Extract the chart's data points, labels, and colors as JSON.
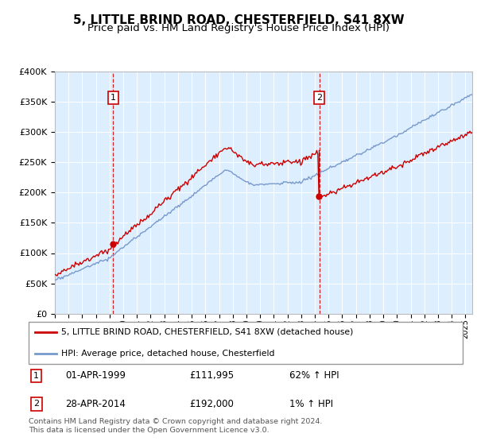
{
  "title": "5, LITTLE BRIND ROAD, CHESTERFIELD, S41 8XW",
  "subtitle": "Price paid vs. HM Land Registry's House Price Index (HPI)",
  "legend_label_red": "5, LITTLE BRIND ROAD, CHESTERFIELD, S41 8XW (detached house)",
  "legend_label_blue": "HPI: Average price, detached house, Chesterfield",
  "annotation_1_date": "01-APR-1999",
  "annotation_1_price": "£111,995",
  "annotation_1_hpi": "62% ↑ HPI",
  "annotation_2_date": "28-APR-2014",
  "annotation_2_price": "£192,000",
  "annotation_2_hpi": "1% ↑ HPI",
  "footer": "Contains HM Land Registry data © Crown copyright and database right 2024.\nThis data is licensed under the Open Government Licence v3.0.",
  "sale1_year": 1999.25,
  "sale1_price": 111995,
  "sale2_year": 2014.33,
  "sale2_price": 192000,
  "ylim": [
    0,
    400000
  ],
  "xlim_start": 1995.0,
  "xlim_end": 2025.5,
  "red_color": "#cc0000",
  "blue_color": "#7799cc",
  "bg_color": "#ddeeff",
  "title_fontsize": 11,
  "subtitle_fontsize": 9.5
}
